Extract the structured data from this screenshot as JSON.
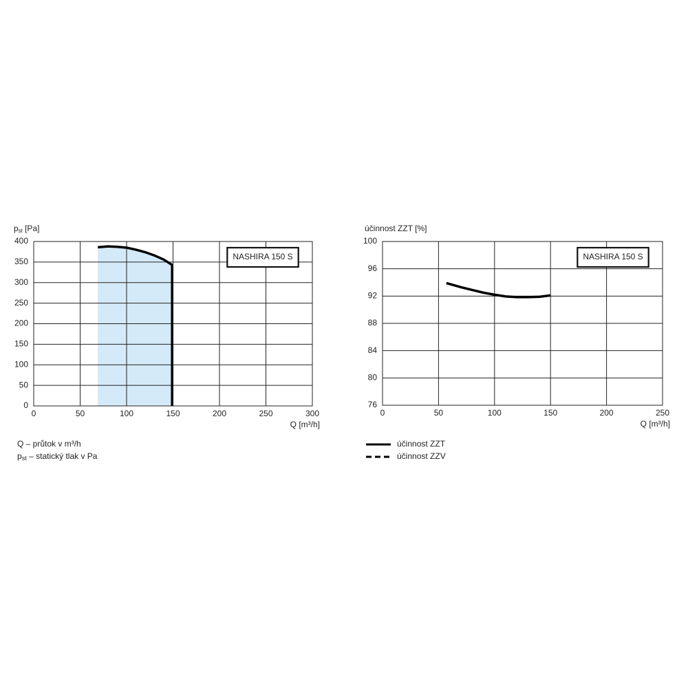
{
  "chart_data": [
    {
      "type": "line",
      "ylabel": [
        "p",
        "st",
        " [Pa]"
      ],
      "xlabel": "Q [m³/h]",
      "annotation": "NASHIRA 150 S",
      "xlim": [
        0,
        300
      ],
      "xticks": [
        0,
        50,
        100,
        150,
        200,
        250,
        300
      ],
      "ylim": [
        0,
        400
      ],
      "yticks": [
        0,
        50,
        100,
        150,
        200,
        250,
        300,
        350,
        400
      ],
      "grid": true,
      "series": [
        {
          "color": "#000000",
          "fill": "#d4eaf8",
          "x": [
            69,
            80,
            90,
            100,
            110,
            120,
            130,
            140,
            149,
            149
          ],
          "values": [
            386,
            388,
            387,
            385,
            380,
            374,
            366,
            356,
            343,
            0
          ]
        }
      ],
      "notes": [
        [
          "Q – průtok v m³/h"
        ],
        [
          "p",
          "st",
          " – statický tlak v Pa"
        ]
      ]
    },
    {
      "type": "line",
      "ylabel": [
        "účinnost ZZT [%]"
      ],
      "xlabel": "Q [m³/h]",
      "annotation": "NASHIRA 150 S",
      "xlim": [
        0,
        250
      ],
      "xticks": [
        0,
        50,
        100,
        150,
        200,
        250
      ],
      "ylim": [
        76,
        100
      ],
      "yticks": [
        76,
        80,
        84,
        88,
        92,
        96,
        100
      ],
      "grid": true,
      "legend": "below",
      "series": [
        {
          "name": "účinnost ZZT",
          "color": "#000000",
          "dash": false,
          "x": [
            57,
            70,
            80,
            90,
            100,
            110,
            120,
            130,
            140,
            150
          ],
          "values": [
            93.9,
            93.3,
            92.9,
            92.5,
            92.2,
            91.95,
            91.85,
            91.85,
            91.9,
            92.1
          ]
        },
        {
          "name": "účinnost ZZV",
          "color": "#000000",
          "dash": true,
          "x": [],
          "values": []
        }
      ]
    }
  ]
}
